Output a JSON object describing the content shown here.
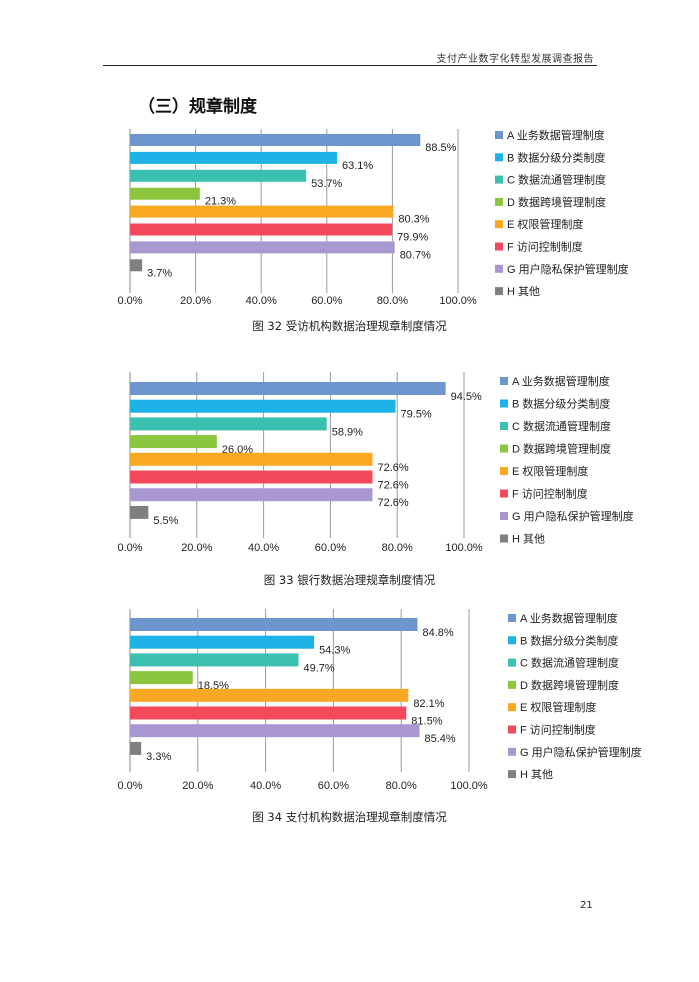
{
  "header": {
    "running_title": "支付产业数字化转型发展调查报告"
  },
  "section": {
    "title": "（三）规章制度"
  },
  "legend_labels": [
    "A 业务数据管理制度",
    "B 数据分级分类制度",
    "C 数据流通管理制度",
    "D 数据跨境管理制度",
    "E 权限管理制度",
    "F 访问控制制度",
    "G 用户隐私保护管理制度",
    "H 其他"
  ],
  "colors": [
    "#6d96ce",
    "#1eb3e6",
    "#3bbfaf",
    "#8cc63f",
    "#f9a824",
    "#f4485b",
    "#a997d2",
    "#7f7f7f"
  ],
  "chart_data": [
    {
      "type": "bar",
      "orientation": "horizontal",
      "caption": "图 32 受访机构数据治理规章制度情况",
      "categories": [
        "A 业务数据管理制度",
        "B 数据分级分类制度",
        "C 数据流通管理制度",
        "D 数据跨境管理制度",
        "E 权限管理制度",
        "F 访问控制制度",
        "G 用户隐私保护管理制度",
        "H 其他"
      ],
      "values": [
        88.5,
        63.1,
        53.7,
        21.3,
        80.3,
        79.9,
        80.7,
        3.7
      ],
      "value_labels": [
        "88.5%",
        "63.1%",
        "53.7%",
        "21.3%",
        "80.3%",
        "79.9%",
        "80.7%",
        "3.7%"
      ],
      "xlim": [
        0,
        100
      ],
      "x_ticks": [
        "0.0%",
        "20.0%",
        "40.0%",
        "60.0%",
        "80.0%",
        "100.0%"
      ],
      "legend": "right"
    },
    {
      "type": "bar",
      "orientation": "horizontal",
      "caption": "图 33 银行数据治理规章制度情况",
      "categories": [
        "A 业务数据管理制度",
        "B 数据分级分类制度",
        "C 数据流通管理制度",
        "D 数据跨境管理制度",
        "E 权限管理制度",
        "F 访问控制制度",
        "G 用户隐私保护管理制度",
        "H 其他"
      ],
      "values": [
        94.5,
        79.5,
        58.9,
        26.0,
        72.6,
        72.6,
        72.6,
        5.5
      ],
      "value_labels": [
        "94.5%",
        "79.5%",
        "58.9%",
        "26.0%",
        "72.6%",
        "72.6%",
        "72.6%",
        "5.5%"
      ],
      "xlim": [
        0,
        100
      ],
      "x_ticks": [
        "0.0%",
        "20.0%",
        "40.0%",
        "60.0%",
        "80.0%",
        "100.0%"
      ],
      "legend": "right"
    },
    {
      "type": "bar",
      "orientation": "horizontal",
      "caption": "图 34 支付机构数据治理规章制度情况",
      "categories": [
        "A 业务数据管理制度",
        "B 数据分级分类制度",
        "C 数据流通管理制度",
        "D 数据跨境管理制度",
        "E 权限管理制度",
        "F 访问控制制度",
        "G 用户隐私保护管理制度",
        "H 其他"
      ],
      "values": [
        84.8,
        54.3,
        49.7,
        18.5,
        82.1,
        81.5,
        85.4,
        3.3
      ],
      "value_labels": [
        "84.8%",
        "54.3%",
        "49.7%",
        "18.5%",
        "82.1%",
        "81.5%",
        "85.4%",
        "3.3%"
      ],
      "xlim": [
        0,
        100
      ],
      "x_ticks": [
        "0.0%",
        "20.0%",
        "40.0%",
        "60.0%",
        "80.0%",
        "100.0%"
      ],
      "legend": "right"
    }
  ],
  "footer": {
    "page_number": "21"
  }
}
